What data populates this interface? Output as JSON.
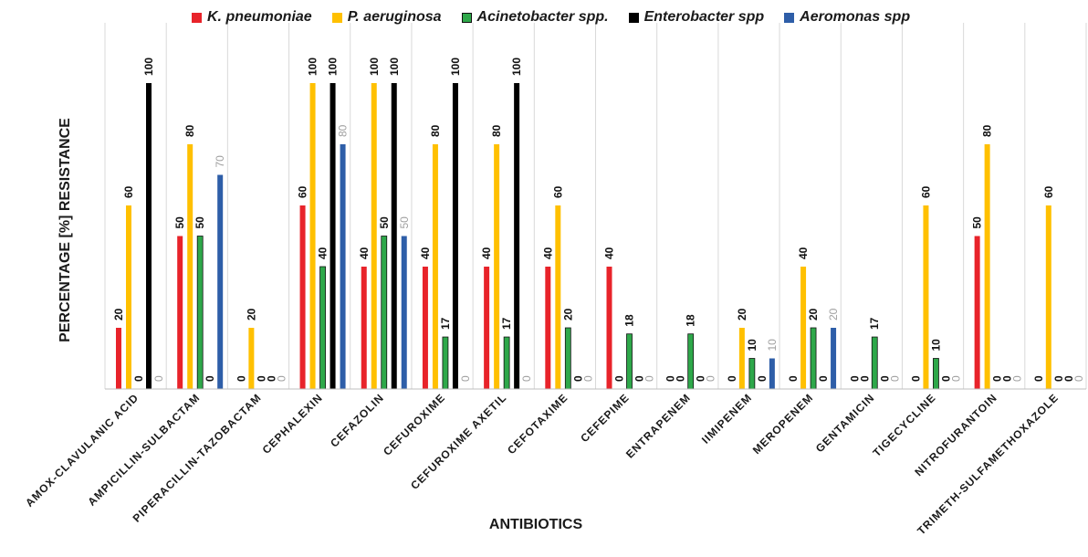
{
  "chart_data": {
    "type": "bar",
    "title": "",
    "xlabel": "ANTIBIOTICS",
    "ylabel": "PERCENTAGE [%] RESISTANCE",
    "ylim": [
      0,
      100
    ],
    "grid": "vertical separators between categories",
    "legend_position": "top",
    "categories": [
      "AMOX-CLAVULANIC ACID",
      "AMPICILLIN-SULBACTAM",
      "PIPERACILLIN-TAZOBACTAM",
      "CEPHALEXIN",
      "CEFAZOLIN",
      "CEFUROXIME",
      "CEFUROXIME AXETIL",
      "CEFOTAXIME",
      "CEFEPIME",
      "ENTRAPENEM",
      "IIMIPENEM",
      "MEROPENEM",
      "GENTAMICIN",
      "TIGECYCLINE",
      "NITROFURANTOIN",
      "TRIMETH-SULFAMETHOXAZOLE"
    ],
    "series": [
      {
        "name": "K. pneumoniae",
        "color": "#e8232a",
        "values": [
          20,
          50,
          0,
          60,
          40,
          40,
          40,
          40,
          40,
          0,
          0,
          0,
          0,
          0,
          50,
          0
        ]
      },
      {
        "name": "P. aeruginosa",
        "color": "#ffc000",
        "values": [
          60,
          80,
          20,
          100,
          100,
          80,
          80,
          60,
          0,
          0,
          20,
          40,
          0,
          60,
          80,
          60
        ]
      },
      {
        "name": "Acinetobacter spp.",
        "color": "#2ea84a",
        "values": [
          0,
          50,
          0,
          40,
          50,
          17,
          17,
          20,
          18,
          18,
          10,
          20,
          17,
          10,
          0,
          0
        ]
      },
      {
        "name": "Enterobacter spp",
        "color": "#000000",
        "values": [
          100,
          0,
          0,
          100,
          100,
          100,
          100,
          0,
          0,
          0,
          0,
          0,
          0,
          0,
          0,
          0
        ]
      },
      {
        "name": "Aeromonas spp",
        "color": "#2e5ea8",
        "values": [
          0,
          70,
          0,
          80,
          50,
          0,
          0,
          0,
          0,
          0,
          10,
          20,
          0,
          0,
          0,
          0
        ]
      }
    ]
  }
}
